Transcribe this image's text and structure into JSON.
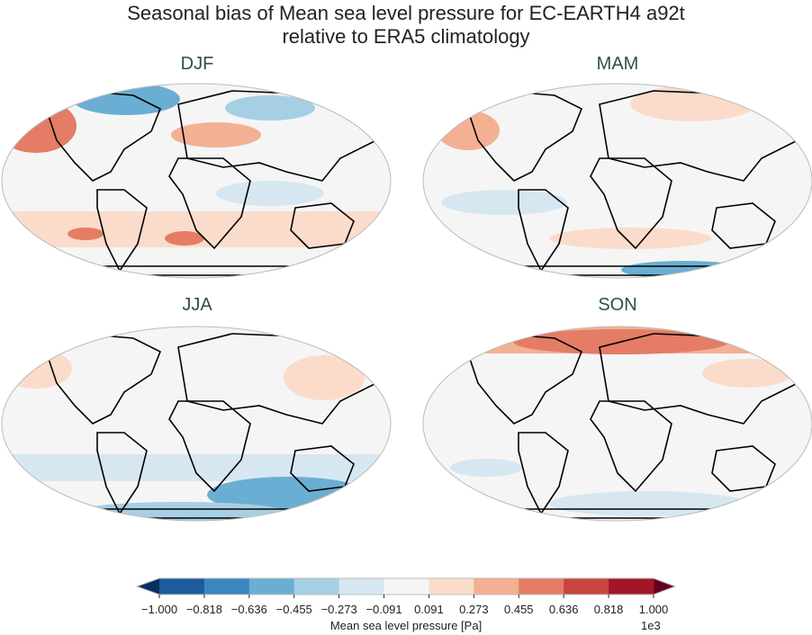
{
  "title_line1": "Seasonal bias of Mean sea level pressure for EC-EARTH4 a92t",
  "title_line2": "relative to ERA5 climatology",
  "panels": [
    {
      "season": "DJF"
    },
    {
      "season": "MAM"
    },
    {
      "season": "JJA"
    },
    {
      "season": "SON"
    }
  ],
  "colorbar": {
    "label": "Mean sea level pressure [Pa]",
    "multiplier": "1e3",
    "ticks": [
      "−1.000",
      "−0.818",
      "−0.636",
      "−0.455",
      "−0.273",
      "−0.091",
      "0.091",
      "0.273",
      "0.455",
      "0.636",
      "0.818",
      "1.000"
    ],
    "colors": [
      "#1b5b9e",
      "#3a87bf",
      "#6aaed3",
      "#a7cfe4",
      "#d6e7f1",
      "#f5f5f5",
      "#fbdccb",
      "#f4b092",
      "#e47c66",
      "#c9453f",
      "#a51528"
    ],
    "under_color": "#053061",
    "over_color": "#67001f",
    "extend": "both",
    "cmap": "RdBu_r"
  }
}
